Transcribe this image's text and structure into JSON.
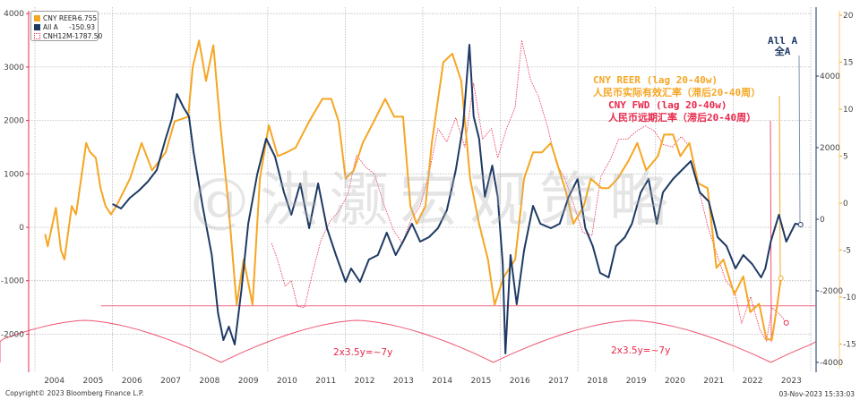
{
  "chart_data": {
    "type": "line",
    "title": "",
    "xlabel": "",
    "x_ticks": [
      "2004",
      "2005",
      "2006",
      "2007",
      "2008",
      "2009",
      "2010",
      "2011",
      "2012",
      "2013",
      "2014",
      "2015",
      "2016",
      "2017",
      "2018",
      "2019",
      "2020",
      "2021",
      "2022",
      "2023"
    ],
    "xlim": [
      2003.6,
      2024.0
    ],
    "axes": {
      "left": {
        "ticks": [
          4000,
          3000,
          2000,
          1000,
          0,
          -1000,
          -2000
        ],
        "ylim": [
          -2700,
          4050
        ],
        "color": "#e8294c",
        "series": "CNH12M"
      },
      "right_inner": {
        "ticks": [
          4000,
          2000,
          0,
          -2000,
          -4000
        ],
        "ylim": [
          -4300,
          6050
        ],
        "color": "#1e3a64",
        "series": "All A"
      },
      "right_outer": {
        "ticks": [
          20,
          15,
          10,
          5,
          0,
          -5,
          -10,
          -15
        ],
        "ylim": [
          -18.6,
          20.1
        ],
        "color": "#f5a623",
        "series": "CNY REER"
      }
    },
    "grid": true,
    "legend_position": "top-left",
    "series": [
      {
        "name": "CNY REER",
        "axis": "right_outer",
        "color": "#f5a623",
        "style": "solid",
        "last_value": -6.755,
        "points": [
          [
            2004.26,
            -3.3
          ],
          [
            2004.33,
            -4.6
          ],
          [
            2004.54,
            -0.5
          ],
          [
            2004.67,
            -5.0
          ],
          [
            2004.76,
            -6.0
          ],
          [
            2004.95,
            -0.3
          ],
          [
            2005.06,
            -1.2
          ],
          [
            2005.32,
            6.4
          ],
          [
            2005.41,
            5.5
          ],
          [
            2005.57,
            4.8
          ],
          [
            2005.69,
            1.6
          ],
          [
            2005.82,
            -0.3
          ],
          [
            2005.96,
            -1.2
          ],
          [
            2006.1,
            -0.3
          ],
          [
            2006.45,
            2.6
          ],
          [
            2006.75,
            6.4
          ],
          [
            2007.02,
            3.5
          ],
          [
            2007.37,
            5.4
          ],
          [
            2007.6,
            8.7
          ],
          [
            2007.95,
            9.2
          ],
          [
            2008.07,
            14.5
          ],
          [
            2008.23,
            17.3
          ],
          [
            2008.41,
            13.0
          ],
          [
            2008.6,
            16.8
          ],
          [
            2008.76,
            9.2
          ],
          [
            2008.99,
            -0.3
          ],
          [
            2009.2,
            -10.8
          ],
          [
            2009.38,
            -6.0
          ],
          [
            2009.61,
            -10.8
          ],
          [
            2009.8,
            2.6
          ],
          [
            2010.03,
            8.3
          ],
          [
            2010.26,
            5.0
          ],
          [
            2010.49,
            5.4
          ],
          [
            2010.72,
            5.9
          ],
          [
            2011.07,
            8.7
          ],
          [
            2011.41,
            11.1
          ],
          [
            2011.64,
            11.1
          ],
          [
            2011.83,
            8.7
          ],
          [
            2012.01,
            2.6
          ],
          [
            2012.22,
            3.5
          ],
          [
            2012.45,
            6.4
          ],
          [
            2012.8,
            9.2
          ],
          [
            2013.03,
            11.1
          ],
          [
            2013.26,
            9.2
          ],
          [
            2013.49,
            9.2
          ],
          [
            2013.68,
            -0.3
          ],
          [
            2013.84,
            -2.2
          ],
          [
            2014.07,
            -0.3
          ],
          [
            2014.23,
            6.4
          ],
          [
            2014.53,
            15.0
          ],
          [
            2014.76,
            15.9
          ],
          [
            2014.99,
            13.0
          ],
          [
            2015.22,
            2.6
          ],
          [
            2015.45,
            -2.2
          ],
          [
            2015.68,
            -6.0
          ],
          [
            2015.85,
            -10.8
          ],
          [
            2016.08,
            -7.9
          ],
          [
            2016.38,
            -6.0
          ],
          [
            2016.61,
            2.6
          ],
          [
            2016.84,
            5.4
          ],
          [
            2017.07,
            5.4
          ],
          [
            2017.3,
            6.4
          ],
          [
            2017.69,
            1.2
          ],
          [
            2017.88,
            -2.2
          ],
          [
            2018.15,
            -0.3
          ],
          [
            2018.33,
            2.6
          ],
          [
            2018.61,
            1.6
          ],
          [
            2018.79,
            1.6
          ],
          [
            2019.02,
            2.6
          ],
          [
            2019.3,
            4.5
          ],
          [
            2019.53,
            6.4
          ],
          [
            2019.76,
            3.5
          ],
          [
            2020.06,
            5.0
          ],
          [
            2020.22,
            7.3
          ],
          [
            2020.45,
            7.3
          ],
          [
            2020.64,
            5.0
          ],
          [
            2020.87,
            6.4
          ],
          [
            2021.1,
            2.1
          ],
          [
            2021.34,
            1.6
          ],
          [
            2021.57,
            -6.9
          ],
          [
            2021.75,
            -6.0
          ],
          [
            2022.03,
            -9.7
          ],
          [
            2022.26,
            -7.8
          ],
          [
            2022.44,
            -11.6
          ],
          [
            2022.67,
            -10.7
          ],
          [
            2022.86,
            -14.5
          ],
          [
            2023.0,
            -14.5
          ],
          [
            2023.14,
            -10.7
          ],
          [
            2023.23,
            -8.0
          ]
        ]
      },
      {
        "name": "All A",
        "axis": "right_inner",
        "color": "#1e3a64",
        "style": "solid",
        "last_value": -150.93,
        "points": [
          [
            2006.0,
            425
          ],
          [
            2006.22,
            300
          ],
          [
            2006.45,
            600
          ],
          [
            2006.68,
            800
          ],
          [
            2006.91,
            1050
          ],
          [
            2007.14,
            1375
          ],
          [
            2007.37,
            2250
          ],
          [
            2007.53,
            2800
          ],
          [
            2007.66,
            3500
          ],
          [
            2007.83,
            3125
          ],
          [
            2007.97,
            2875
          ],
          [
            2008.09,
            1875
          ],
          [
            2008.32,
            375
          ],
          [
            2008.56,
            -1000
          ],
          [
            2008.72,
            -2625
          ],
          [
            2008.86,
            -3375
          ],
          [
            2009.0,
            -3000
          ],
          [
            2009.15,
            -3500
          ],
          [
            2009.32,
            -2000
          ],
          [
            2009.5,
            -125
          ],
          [
            2009.73,
            1250
          ],
          [
            2009.96,
            2250
          ],
          [
            2010.19,
            1750
          ],
          [
            2010.42,
            750
          ],
          [
            2010.61,
            125
          ],
          [
            2010.84,
            1000
          ],
          [
            2011.07,
            -250
          ],
          [
            2011.3,
            1000
          ],
          [
            2011.53,
            -250
          ],
          [
            2011.76,
            -1000
          ],
          [
            2012.01,
            -1750
          ],
          [
            2012.15,
            -1375
          ],
          [
            2012.38,
            -1750
          ],
          [
            2012.61,
            -1125
          ],
          [
            2012.84,
            -1000
          ],
          [
            2013.07,
            -375
          ],
          [
            2013.3,
            -1000
          ],
          [
            2013.49,
            -625
          ],
          [
            2013.72,
            -125
          ],
          [
            2013.93,
            -625
          ],
          [
            2014.16,
            -500
          ],
          [
            2014.39,
            -250
          ],
          [
            2014.62,
            250
          ],
          [
            2014.85,
            1375
          ],
          [
            2015.04,
            2625
          ],
          [
            2015.2,
            4875
          ],
          [
            2015.31,
            2875
          ],
          [
            2015.45,
            2250
          ],
          [
            2015.6,
            625
          ],
          [
            2015.79,
            1500
          ],
          [
            2015.93,
            625
          ],
          [
            2016.06,
            -1250
          ],
          [
            2016.13,
            -3750
          ],
          [
            2016.26,
            -1000
          ],
          [
            2016.42,
            -2375
          ],
          [
            2016.61,
            -875
          ],
          [
            2016.84,
            375
          ],
          [
            2017.03,
            -125
          ],
          [
            2017.3,
            -250
          ],
          [
            2017.53,
            -125
          ],
          [
            2017.76,
            625
          ],
          [
            2017.99,
            1125
          ],
          [
            2018.19,
            -250
          ],
          [
            2018.38,
            -750
          ],
          [
            2018.57,
            -1500
          ],
          [
            2018.79,
            -1625
          ],
          [
            2018.98,
            -750
          ],
          [
            2019.21,
            -500
          ],
          [
            2019.39,
            -125
          ],
          [
            2019.62,
            750
          ],
          [
            2019.82,
            1125
          ],
          [
            2020.03,
            -125
          ],
          [
            2020.19,
            750
          ],
          [
            2020.45,
            1125
          ],
          [
            2020.68,
            1375
          ],
          [
            2020.91,
            1625
          ],
          [
            2021.14,
            750
          ],
          [
            2021.37,
            500
          ],
          [
            2021.6,
            -500
          ],
          [
            2021.83,
            -750
          ],
          [
            2022.06,
            -1375
          ],
          [
            2022.26,
            -1000
          ],
          [
            2022.49,
            -1250
          ],
          [
            2022.72,
            -1625
          ],
          [
            2022.83,
            -1375
          ],
          [
            2022.97,
            -625
          ],
          [
            2023.18,
            125
          ],
          [
            2023.37,
            -625
          ],
          [
            2023.6,
            -125
          ],
          [
            2023.74,
            -150.93
          ]
        ]
      },
      {
        "name": "CNH12M",
        "axis": "left",
        "color": "#e8294c",
        "style": "dotted",
        "last_value": -1787.5,
        "points": [
          [
            2010.1,
            -300
          ],
          [
            2010.26,
            -620
          ],
          [
            2010.45,
            -1100
          ],
          [
            2010.61,
            -1000
          ],
          [
            2010.77,
            -1480
          ],
          [
            2010.95,
            -1500
          ],
          [
            2011.14,
            -900
          ],
          [
            2011.37,
            -250
          ],
          [
            2011.6,
            100
          ],
          [
            2011.83,
            300
          ],
          [
            2012.06,
            600
          ],
          [
            2012.29,
            1350
          ],
          [
            2012.52,
            1130
          ],
          [
            2012.75,
            1000
          ],
          [
            2013.01,
            400
          ],
          [
            2013.24,
            -50
          ],
          [
            2013.47,
            -300
          ],
          [
            2013.7,
            150
          ],
          [
            2013.93,
            400
          ],
          [
            2014.16,
            1000
          ],
          [
            2014.39,
            1850
          ],
          [
            2014.62,
            1600
          ],
          [
            2014.85,
            2050
          ],
          [
            2015.08,
            1500
          ],
          [
            2015.31,
            2700
          ],
          [
            2015.54,
            1650
          ],
          [
            2015.77,
            1850
          ],
          [
            2015.93,
            1300
          ],
          [
            2016.16,
            1850
          ],
          [
            2016.38,
            2250
          ],
          [
            2016.55,
            3500
          ],
          [
            2016.78,
            2750
          ],
          [
            2016.98,
            2450
          ],
          [
            2017.21,
            1900
          ],
          [
            2017.44,
            1200
          ],
          [
            2017.67,
            900
          ],
          [
            2017.9,
            400
          ],
          [
            2018.13,
            -100
          ],
          [
            2018.36,
            -150
          ],
          [
            2018.59,
            950
          ],
          [
            2018.82,
            1250
          ],
          [
            2019.05,
            1650
          ],
          [
            2019.28,
            1650
          ],
          [
            2019.51,
            1800
          ],
          [
            2019.74,
            1900
          ],
          [
            2019.97,
            1800
          ],
          [
            2020.2,
            1550
          ],
          [
            2020.43,
            1500
          ],
          [
            2020.66,
            1700
          ],
          [
            2020.89,
            1500
          ],
          [
            2021.12,
            700
          ],
          [
            2021.35,
            0
          ],
          [
            2021.58,
            -500
          ],
          [
            2021.81,
            -1000
          ],
          [
            2022.04,
            -1200
          ],
          [
            2022.22,
            -1800
          ],
          [
            2022.45,
            -1300
          ],
          [
            2022.68,
            -1900
          ],
          [
            2022.86,
            -2130
          ],
          [
            2023.0,
            -1500
          ],
          [
            2023.23,
            -1650
          ],
          [
            2023.37,
            -1787.5
          ]
        ]
      }
    ],
    "reference_lines": [
      {
        "type": "horizontal",
        "axis": "left",
        "value": -1470,
        "color": "#e8294c",
        "from_year": 2005.7
      }
    ],
    "cycle_arcs": {
      "color": "#e8294c",
      "troughs_year": [
        2008.8,
        2015.82,
        2022.97
      ],
      "label": "2x3.5y=~7y"
    },
    "annotations": [
      {
        "id": "all-a",
        "lines": [
          "All A",
          "全A"
        ],
        "color": "#1e3a64"
      },
      {
        "id": "cny-reer",
        "lines": [
          "CNY REER (lag 20-40w)",
          "人民币实际有效汇率（滞后20-40周）"
        ],
        "color": "#f5a623"
      },
      {
        "id": "cny-fwd",
        "lines": [
          "CNY FWD (lag 20-40w)",
          "人民币远期汇率（滞后20-40周）"
        ],
        "color": "#e8294c"
      }
    ]
  },
  "legend": [
    {
      "name": "CNY REER",
      "value": "-6.755",
      "color": "#f5a623",
      "style": "solid"
    },
    {
      "name": "All A",
      "value": "-150.93",
      "color": "#1e3a64",
      "style": "solid"
    },
    {
      "name": "CNH12M",
      "value": "-1787.50",
      "color": "#e8294c",
      "style": "outline"
    }
  ],
  "cycle_labels": [
    "2x3.5y=~7y",
    "2x3.5y=~7y"
  ],
  "watermark": "@洪灏宏观策略",
  "footer": {
    "copyright": "Copyright© 2023 Bloomberg Finance L.P.",
    "timestamp": "03-Nov-2023 15:33:03"
  }
}
